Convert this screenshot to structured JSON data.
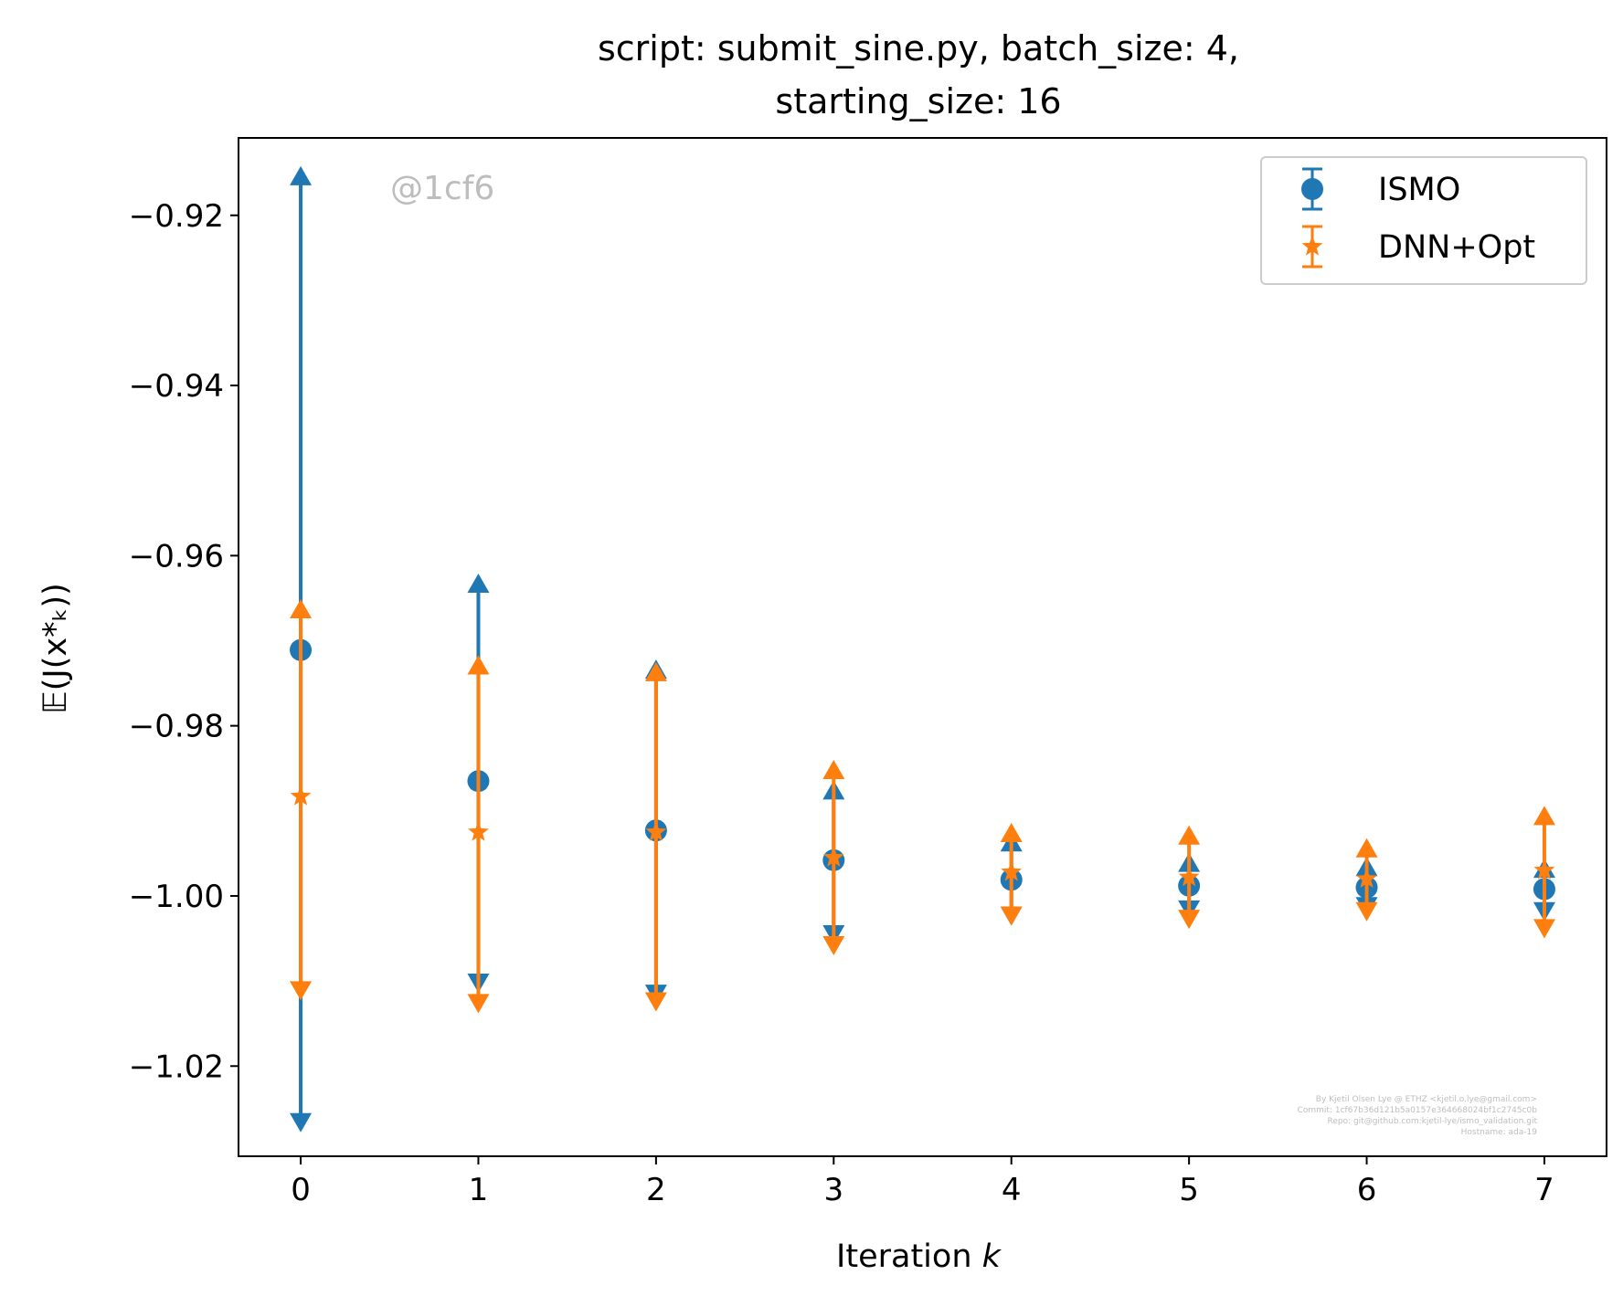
{
  "chart_data": {
    "type": "errorbar",
    "title": [
      "script: submit_sine.py, batch_size: 4,",
      "starting_size: 16"
    ],
    "xlabel": "Iteration",
    "xlabel_var": "k",
    "ylabel": "𝔼(J(x*ₖ))",
    "x": [
      0,
      1,
      2,
      3,
      4,
      5,
      6,
      7
    ],
    "xticks": [
      "0",
      "1",
      "2",
      "3",
      "4",
      "5",
      "6",
      "7"
    ],
    "yticks": [
      {
        "value": -0.92,
        "label": "−0.92"
      },
      {
        "value": -0.94,
        "label": "−0.94"
      },
      {
        "value": -0.96,
        "label": "−0.96"
      },
      {
        "value": -0.98,
        "label": "−0.98"
      },
      {
        "value": -1.0,
        "label": "−1.00"
      },
      {
        "value": -1.02,
        "label": "−1.02"
      }
    ],
    "xlim": [
      -0.35,
      7.35
    ],
    "ylim": [
      -1.0306,
      -0.9109
    ],
    "grid": false,
    "legend_position": "top-right",
    "series": [
      {
        "name": "ISMO",
        "marker": "circle",
        "color": "#1f77b4",
        "mean": [
          -0.9711,
          -0.9865,
          -0.9923,
          -0.9958,
          -0.9981,
          -0.9988,
          -0.999,
          -0.9992
        ],
        "upper": [
          -0.9155,
          -0.9634,
          -0.9735,
          -0.9877,
          -0.9938,
          -0.9962,
          -0.9967,
          -0.9969
        ],
        "lower": [
          -1.0265,
          -1.0101,
          -1.0114,
          -1.0044,
          -1.0022,
          -1.0015,
          -1.0011,
          -1.0017
        ]
      },
      {
        "name": "DNN+Opt",
        "marker": "star",
        "color": "#ff7f0e",
        "mean": [
          -0.9883,
          -0.9925,
          -0.9925,
          -0.9955,
          -0.9972,
          -0.9978,
          -0.998,
          -0.997
        ],
        "upper": [
          -0.9664,
          -0.973,
          -0.9738,
          -0.9853,
          -0.9927,
          -0.993,
          -0.9945,
          -0.9907
        ],
        "lower": [
          -1.011,
          -1.0125,
          -1.0123,
          -1.0057,
          -1.0022,
          -1.0026,
          -1.0017,
          -1.0037
        ]
      }
    ]
  },
  "watermark": "@1cf6",
  "credits": [
    "By Kjetil Olsen Lye @ ETHZ <kjetil.o.lye@gmail.com>",
    "Commit: 1cf67b36d121b5a0157e364668024bf1c2745c0b",
    "Repo: git@github.com:kjetil-lye/ismo_validation.git",
    "Hostname: ada-19"
  ]
}
